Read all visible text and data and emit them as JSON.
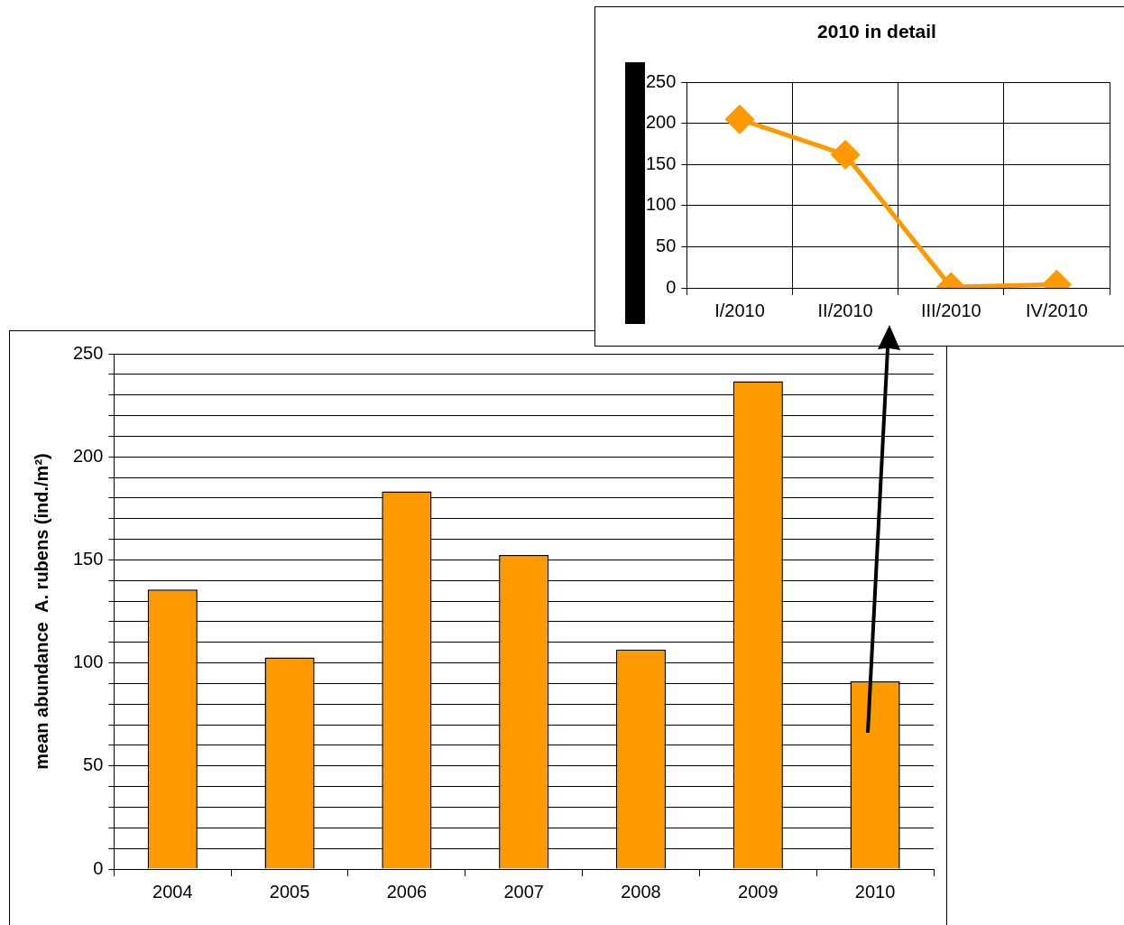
{
  "chart_data": [
    {
      "type": "bar",
      "categories": [
        "2004",
        "2005",
        "2006",
        "2007",
        "2008",
        "2009",
        "2010"
      ],
      "values": [
        135.6,
        102.7,
        183.2,
        152.4,
        106.5,
        236.6,
        91.1
      ],
      "color": "#ff9900",
      "ylabel": "mean abundance  A. rubens (ind./m²)",
      "ylim": [
        0,
        250
      ],
      "yticks": [
        0,
        {
          "value": 10,
          "label": null
        },
        {
          "value": 20,
          "label": null
        },
        {
          "value": 30,
          "label": null
        },
        {
          "value": 40,
          "label": null
        },
        50,
        {
          "value": 60,
          "label": null
        },
        {
          "value": 70,
          "label": null
        },
        {
          "value": 80,
          "label": null
        },
        {
          "value": 90,
          "label": null
        },
        100,
        {
          "value": 110,
          "label": null
        },
        {
          "value": 120,
          "label": null
        },
        {
          "value": 130,
          "label": null
        },
        {
          "value": 140,
          "label": null
        },
        150,
        {
          "value": 160,
          "label": null
        },
        {
          "value": 170,
          "label": null
        },
        {
          "value": 180,
          "label": null
        },
        {
          "value": 190,
          "label": null
        },
        200,
        {
          "value": 210,
          "label": null
        },
        {
          "value": 220,
          "label": null
        },
        {
          "value": 230,
          "label": null
        },
        {
          "value": 240,
          "label": null
        },
        250
      ],
      "grid": "y"
    },
    {
      "type": "line",
      "title": "2010 in detail",
      "categories": [
        "I/2010",
        "II/2010",
        "III/2010",
        "IV/2010"
      ],
      "values": [
        205,
        162,
        1,
        4
      ],
      "color": "#ff9900",
      "marker": "diamond",
      "ylim": [
        0,
        250
      ],
      "yticks": [
        0,
        50,
        100,
        150,
        200,
        250
      ],
      "grid": true
    }
  ]
}
